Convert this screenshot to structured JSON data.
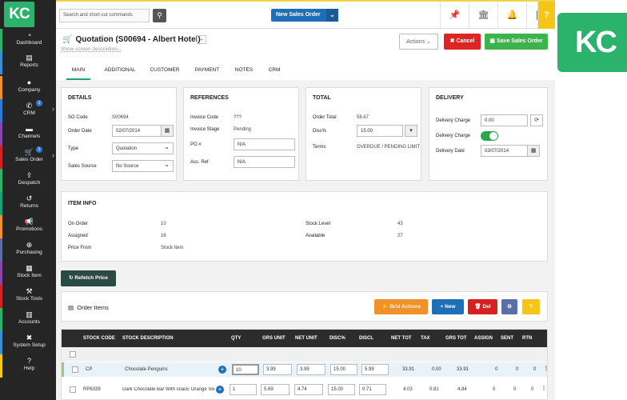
{
  "brand": {
    "logo": "KC",
    "accent": "#2bb26b"
  },
  "nav": [
    {
      "label": "Dashboard",
      "icon": "dashboard-icon",
      "glyph": "◔"
    },
    {
      "label": "Reports",
      "icon": "reports-icon",
      "glyph": "▤"
    },
    {
      "label": "Company",
      "icon": "company-icon",
      "glyph": "●"
    },
    {
      "label": "CRM",
      "icon": "crm-icon",
      "glyph": "✆",
      "badge": "1"
    },
    {
      "label": "Channels",
      "icon": "channels-icon",
      "glyph": "▬"
    },
    {
      "label": "Sales Order",
      "icon": "sales-order-icon",
      "glyph": "🛒",
      "badge": "1"
    },
    {
      "label": "Despatch",
      "icon": "despatch-icon",
      "glyph": "⇪"
    },
    {
      "label": "Returns",
      "icon": "returns-icon",
      "glyph": "↺"
    },
    {
      "label": "Promotions",
      "icon": "promotions-icon",
      "glyph": "📢"
    },
    {
      "label": "Purchasing",
      "icon": "purchasing-icon",
      "glyph": "⊕"
    },
    {
      "label": "Stock Item",
      "icon": "stock-item-icon",
      "glyph": "▦"
    },
    {
      "label": "Stock Tools",
      "icon": "stock-tools-icon",
      "glyph": "⚒"
    },
    {
      "label": "Accounts",
      "icon": "accounts-icon",
      "glyph": "▥"
    },
    {
      "label": "System Setup",
      "icon": "system-setup-icon",
      "glyph": "✖"
    },
    {
      "label": "Help",
      "icon": "help-icon",
      "glyph": "?"
    }
  ],
  "topbar": {
    "search_placeholder": "Search and short-cut commands",
    "new_so": "New Sales Order"
  },
  "header": {
    "title": "Quotation (S00694 - Albert Hotel)",
    "desc": "Show screen description...",
    "actions": "Actions",
    "cancel": "Cancel",
    "save": "Save Sales Order"
  },
  "tabs": [
    "MAIN",
    "ADDITIONAL",
    "CUSTOMER",
    "PAYMENT",
    "NOTES",
    "CRM"
  ],
  "details": {
    "title": "DETAILS",
    "so_code_label": "SO Code",
    "so_code": "S00694",
    "order_date_label": "Order Date",
    "order_date": "02/07/2014",
    "type_label": "Type",
    "type": "Quotation",
    "sales_source_label": "Sales Source",
    "sales_source": "No Source"
  },
  "references": {
    "title": "REFERENCES",
    "invoice_code_label": "Invoice Code",
    "invoice_code": "???",
    "invoice_stage_label": "Invoice Stage",
    "invoice_stage": "Pending",
    "po_label": "PO #",
    "po": "N/A",
    "ass_ref_label": "Ass. Ref",
    "ass_ref": "N/A"
  },
  "total": {
    "title": "TOTAL",
    "order_total_label": "Order Total",
    "order_total": "58.67",
    "disc_label": "Disc%",
    "disc": "15.00",
    "terms_label": "Terms",
    "terms": "OVERDUE / PENDING LIMIT"
  },
  "delivery": {
    "title": "DELIVERY",
    "charge_label": "Delivery Charge",
    "charge": "0.00",
    "charge2_label": "Delivery Charge",
    "date_label": "Delivery Date",
    "date": "03/07/2014"
  },
  "item_info": {
    "title": "ITEM INFO",
    "on_order_label": "On Order",
    "on_order": "10",
    "assigned_label": "Assigned",
    "assigned": "16",
    "price_from_label": "Price From",
    "price_from": "Stock Item",
    "stock_level_label": "Stock Level",
    "stock_level": "43",
    "available_label": "Available",
    "available": "27"
  },
  "refetch": "Refetch Price",
  "order_items": {
    "title": "Order Items",
    "grid_actions": "Grid Actions",
    "new": "New",
    "del": "Del",
    "help": "?"
  },
  "table": {
    "columns": [
      "STOCK CODE",
      "STOCK DESCRIPTION",
      "QTY",
      "GRS UNIT",
      "NET UNIT",
      "DISC%",
      "DISCL",
      "NET TOT",
      "TAX",
      "GRS TOT",
      "ASSIGN",
      "SENT",
      "RTN"
    ],
    "rows": [
      {
        "code": "CP",
        "desc": "Chocolate Penguins",
        "qty": "10",
        "grs_unit": "3.99",
        "net_unit": "3.99",
        "disc": "15.00",
        "discl": "5.99",
        "net_tot": "33.91",
        "tax": "0.00",
        "grs_tot": "33.91",
        "assign": "0",
        "sent": "0",
        "rtn": "0"
      },
      {
        "code": "RP6339",
        "desc": "Dark Chocolate Bar With GlacÉ Orange Slices",
        "qty": "1",
        "grs_unit": "5.69",
        "net_unit": "4.74",
        "disc": "15.00",
        "discl": "0.71",
        "net_tot": "4.03",
        "tax": "0.81",
        "grs_tot": "4.84",
        "assign": "0",
        "sent": "0",
        "rtn": "0"
      }
    ]
  }
}
